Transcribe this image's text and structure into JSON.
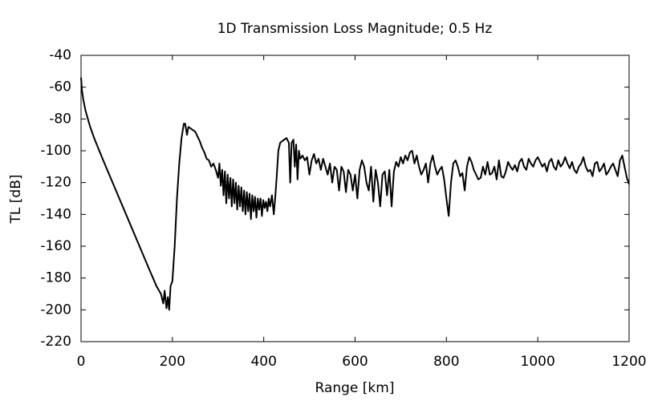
{
  "chart_data": {
    "type": "line",
    "title": "1D Transmission Loss Magnitude; 0.5 Hz",
    "xlabel": "Range [km]",
    "ylabel": "TL [dB]",
    "xlim": [
      0,
      1200
    ],
    "ylim": [
      -220,
      -40
    ],
    "xticks": [
      0,
      200,
      400,
      600,
      800,
      1000,
      1200
    ],
    "yticks": [
      -220,
      -200,
      -180,
      -160,
      -140,
      -120,
      -100,
      -80,
      -60,
      -40
    ],
    "grid": false,
    "series": [
      {
        "name": "TL",
        "color": "#000000",
        "x": [
          0,
          2,
          5,
          10,
          20,
          30,
          50,
          75,
          100,
          125,
          150,
          165,
          175,
          180,
          183,
          187,
          190,
          193,
          196,
          200,
          205,
          210,
          215,
          220,
          225,
          228,
          232,
          235,
          240,
          245,
          250,
          255,
          260,
          265,
          270,
          275,
          280,
          285,
          290,
          295,
          300,
          303,
          306,
          309,
          312,
          315,
          318,
          321,
          324,
          327,
          330,
          333,
          336,
          339,
          342,
          345,
          348,
          351,
          354,
          357,
          360,
          363,
          366,
          369,
          372,
          375,
          378,
          381,
          384,
          387,
          390,
          393,
          396,
          399,
          402,
          405,
          408,
          411,
          414,
          418,
          422,
          425,
          428,
          432,
          436,
          440,
          445,
          450,
          455,
          458,
          461,
          465,
          468,
          471,
          474,
          477,
          480,
          485,
          490,
          495,
          500,
          505,
          510,
          515,
          520,
          525,
          530,
          535,
          540,
          545,
          550,
          555,
          560,
          565,
          570,
          575,
          580,
          585,
          590,
          595,
          600,
          605,
          610,
          615,
          620,
          625,
          630,
          635,
          640,
          645,
          650,
          655,
          660,
          665,
          670,
          675,
          680,
          685,
          690,
          695,
          700,
          705,
          710,
          715,
          720,
          725,
          730,
          735,
          740,
          745,
          750,
          755,
          760,
          765,
          770,
          775,
          780,
          785,
          790,
          795,
          800,
          805,
          810,
          815,
          820,
          825,
          830,
          835,
          840,
          845,
          850,
          855,
          860,
          865,
          870,
          875,
          880,
          885,
          890,
          895,
          900,
          905,
          910,
          915,
          920,
          925,
          930,
          935,
          940,
          945,
          950,
          955,
          960,
          965,
          970,
          975,
          980,
          985,
          990,
          995,
          1000,
          1005,
          1010,
          1015,
          1020,
          1025,
          1030,
          1035,
          1040,
          1045,
          1050,
          1055,
          1060,
          1065,
          1070,
          1075,
          1080,
          1085,
          1090,
          1095,
          1100,
          1105,
          1110,
          1115,
          1120,
          1125,
          1130,
          1135,
          1140,
          1145,
          1150,
          1155,
          1160,
          1165,
          1170,
          1175,
          1180,
          1185,
          1190,
          1195,
          1200
        ],
        "values": [
          -54,
          -62,
          -68,
          -75,
          -85,
          -93,
          -107,
          -124,
          -141,
          -158,
          -175,
          -185,
          -190,
          -196,
          -188,
          -199,
          -192,
          -200,
          -185,
          -182,
          -160,
          -130,
          -108,
          -92,
          -83,
          -83,
          -90,
          -85,
          -86,
          -87,
          -88,
          -91,
          -94,
          -98,
          -101,
          -105,
          -106,
          -110,
          -108,
          -112,
          -117,
          -108,
          -122,
          -112,
          -128,
          -113,
          -133,
          -115,
          -130,
          -117,
          -135,
          -118,
          -133,
          -120,
          -137,
          -122,
          -135,
          -123,
          -138,
          -125,
          -140,
          -126,
          -138,
          -127,
          -143,
          -128,
          -138,
          -129,
          -142,
          -130,
          -137,
          -130,
          -141,
          -131,
          -136,
          -132,
          -138,
          -130,
          -135,
          -128,
          -140,
          -130,
          -118,
          -100,
          -95,
          -94,
          -93,
          -92,
          -95,
          -120,
          -95,
          -93,
          -110,
          -96,
          -118,
          -100,
          -105,
          -103,
          -106,
          -104,
          -115,
          -106,
          -102,
          -108,
          -105,
          -112,
          -105,
          -110,
          -115,
          -108,
          -120,
          -110,
          -112,
          -125,
          -110,
          -113,
          -126,
          -112,
          -115,
          -125,
          -115,
          -130,
          -112,
          -106,
          -110,
          -120,
          -125,
          -110,
          -132,
          -112,
          -120,
          -135,
          -115,
          -113,
          -128,
          -112,
          -135,
          -113,
          -107,
          -110,
          -104,
          -108,
          -103,
          -106,
          -101,
          -100,
          -108,
          -103,
          -110,
          -115,
          -112,
          -108,
          -120,
          -108,
          -103,
          -110,
          -115,
          -112,
          -110,
          -118,
          -130,
          -141,
          -120,
          -108,
          -106,
          -110,
          -116,
          -114,
          -125,
          -110,
          -104,
          -107,
          -112,
          -115,
          -118,
          -117,
          -110,
          -115,
          -107,
          -115,
          -114,
          -110,
          -118,
          -106,
          -116,
          -117,
          -113,
          -107,
          -110,
          -112,
          -109,
          -113,
          -107,
          -105,
          -110,
          -112,
          -105,
          -108,
          -110,
          -106,
          -104,
          -107,
          -110,
          -108,
          -113,
          -107,
          -105,
          -110,
          -112,
          -106,
          -110,
          -108,
          -104,
          -108,
          -111,
          -107,
          -112,
          -114,
          -110,
          -108,
          -104,
          -110,
          -113,
          -112,
          -116,
          -108,
          -107,
          -113,
          -111,
          -108,
          -115,
          -113,
          -110,
          -108,
          -112,
          -116,
          -106,
          -103,
          -110,
          -117,
          -121
        ]
      }
    ]
  }
}
